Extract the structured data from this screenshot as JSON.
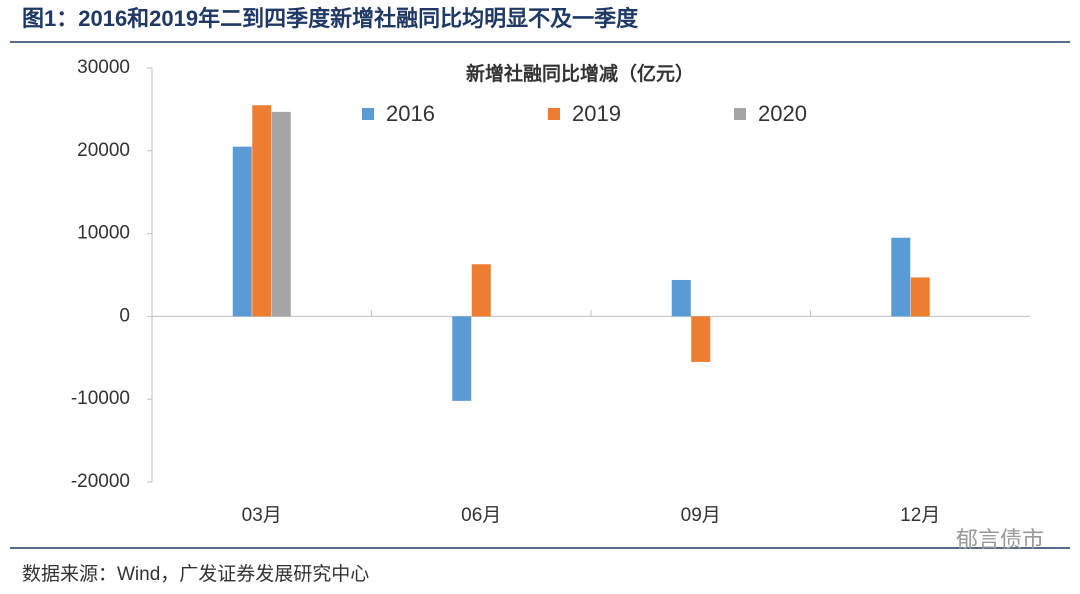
{
  "header": {
    "title": "图1：2016和2019年二到四季度新增社融同比均明显不及一季度"
  },
  "chart_data": {
    "type": "bar",
    "title": "新增社融同比增减（亿元）",
    "categories": [
      "03月",
      "06月",
      "09月",
      "12月"
    ],
    "series": [
      {
        "name": "2016",
        "color": "#5b9bd5",
        "values": [
          20500,
          -10200,
          4400,
          9500
        ]
      },
      {
        "name": "2019",
        "color": "#ed7d31",
        "values": [
          25500,
          6300,
          -5500,
          4700
        ]
      },
      {
        "name": "2020",
        "color": "#a5a5a5",
        "values": [
          24700,
          null,
          null,
          null
        ]
      }
    ],
    "ylim": [
      -20000,
      30000
    ],
    "yticks": [
      -20000,
      -10000,
      0,
      10000,
      20000,
      30000
    ],
    "grid": false
  },
  "footer": {
    "source": "数据来源：Wind，广发证券发展研究中心",
    "watermark": "郁言债市"
  }
}
